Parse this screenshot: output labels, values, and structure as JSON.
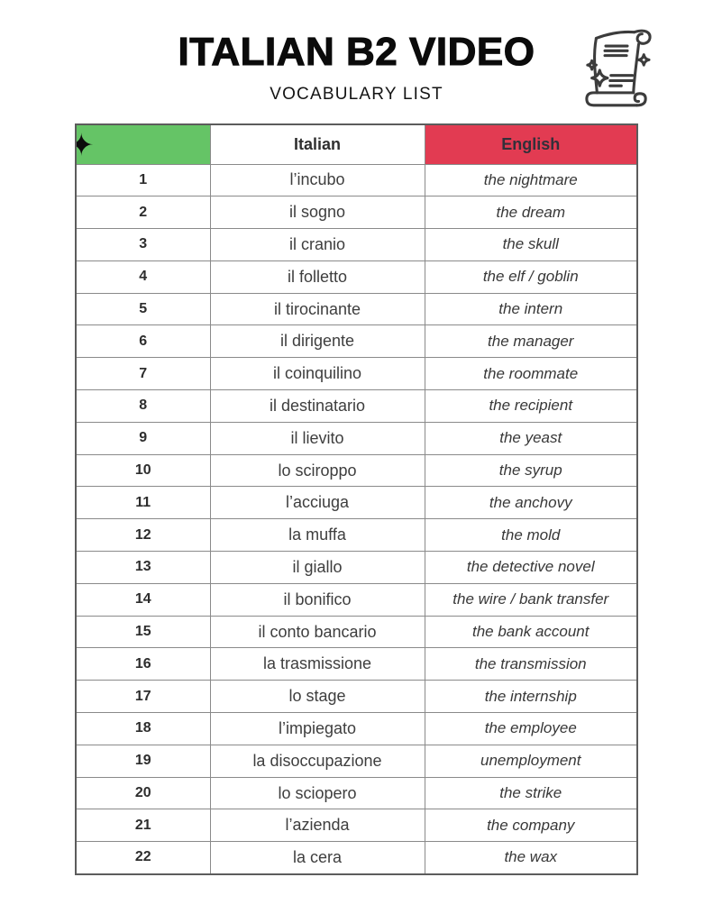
{
  "header": {
    "title": "ITALIAN B2 VIDEO",
    "subtitle": "VOCABULARY LIST"
  },
  "colors": {
    "header_green": "#65c466",
    "header_red": "#e23b52",
    "outer_border": "#5c5c5c",
    "inner_border": "#8a8a8a",
    "text_dark": "#2f2f2f"
  },
  "icons": {
    "corner_sparkle": "✦",
    "decoration": "scroll-with-sparkles"
  },
  "table": {
    "headers": {
      "number": "",
      "italian": "Italian",
      "english": "English"
    },
    "rows": [
      {
        "n": "1",
        "italian": "l’incubo",
        "english": "the nightmare"
      },
      {
        "n": "2",
        "italian": "il sogno",
        "english": "the dream"
      },
      {
        "n": "3",
        "italian": "il cranio",
        "english": "the skull"
      },
      {
        "n": "4",
        "italian": "il folletto",
        "english": "the elf / goblin"
      },
      {
        "n": "5",
        "italian": "il tirocinante",
        "english": "the intern"
      },
      {
        "n": "6",
        "italian": "il dirigente",
        "english": "the manager"
      },
      {
        "n": "7",
        "italian": "il coinquilino",
        "english": "the roommate"
      },
      {
        "n": "8",
        "italian": "il destinatario",
        "english": "the recipient"
      },
      {
        "n": "9",
        "italian": "il lievito",
        "english": "the yeast"
      },
      {
        "n": "10",
        "italian": "lo sciroppo",
        "english": "the syrup"
      },
      {
        "n": "11",
        "italian": "l’acciuga",
        "english": "the anchovy"
      },
      {
        "n": "12",
        "italian": "la muffa",
        "english": "the mold"
      },
      {
        "n": "13",
        "italian": "il giallo",
        "english": "the detective novel"
      },
      {
        "n": "14",
        "italian": "il bonifico",
        "english": "the wire / bank transfer"
      },
      {
        "n": "15",
        "italian": "il conto bancario",
        "english": "the bank account"
      },
      {
        "n": "16",
        "italian": "la trasmissione",
        "english": "the transmission"
      },
      {
        "n": "17",
        "italian": "lo stage",
        "english": "the internship"
      },
      {
        "n": "18",
        "italian": "l’impiegato",
        "english": "the employee"
      },
      {
        "n": "19",
        "italian": "la disoccupazione",
        "english": "unemployment"
      },
      {
        "n": "20",
        "italian": "lo sciopero",
        "english": "the strike"
      },
      {
        "n": "21",
        "italian": "l’azienda",
        "english": "the company"
      },
      {
        "n": "22",
        "italian": "la cera",
        "english": "the wax"
      }
    ]
  }
}
